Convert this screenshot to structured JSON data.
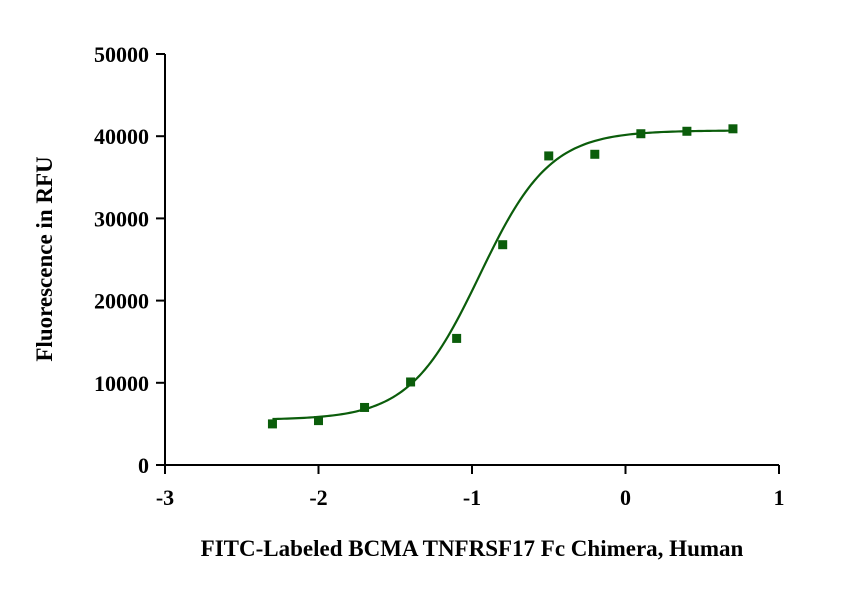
{
  "chart_data": {
    "type": "scatter",
    "title": "",
    "xlabel": "FITC-Labeled BCMA TNFRSF17 Fc Chimera, Human",
    "ylabel": "Fluorescence in RFU",
    "xlim": [
      -3,
      1
    ],
    "ylim": [
      0,
      50000
    ],
    "x_ticks": [
      -3,
      -2,
      -1,
      0,
      1
    ],
    "y_ticks": [
      0,
      10000,
      20000,
      30000,
      40000,
      50000
    ],
    "grid": false,
    "legend": "none",
    "series": [
      {
        "marker": "square",
        "color": "#0b5d0b",
        "x": [
          -2.3,
          -2.0,
          -1.7,
          -1.4,
          -1.1,
          -0.8,
          -0.5,
          -0.2,
          0.1,
          0.4,
          0.7
        ],
        "values": [
          5000,
          5400,
          7000,
          10100,
          15400,
          26800,
          37600,
          37800,
          40300,
          40600,
          40900
        ]
      }
    ],
    "fit_curve": {
      "model": "4PL",
      "color": "#0b5d0b",
      "bottom": 5500,
      "top": 40700,
      "log_ec50": -0.95,
      "hill_slope": 1.9,
      "x_range": [
        -2.3,
        0.7
      ]
    }
  }
}
